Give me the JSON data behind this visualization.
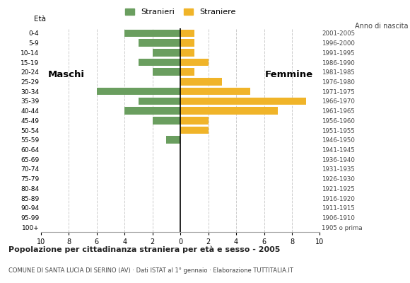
{
  "age_groups": [
    "100+",
    "95-99",
    "90-94",
    "85-89",
    "80-84",
    "75-79",
    "70-74",
    "65-69",
    "60-64",
    "55-59",
    "50-54",
    "45-49",
    "40-44",
    "35-39",
    "30-34",
    "25-29",
    "20-24",
    "15-19",
    "10-14",
    "5-9",
    "0-4"
  ],
  "birth_years": [
    "1905 o prima",
    "1906-1910",
    "1911-1915",
    "1916-1920",
    "1921-1925",
    "1926-1930",
    "1931-1935",
    "1936-1940",
    "1941-1945",
    "1946-1950",
    "1951-1955",
    "1956-1960",
    "1961-1965",
    "1966-1970",
    "1971-1975",
    "1976-1980",
    "1981-1985",
    "1986-1990",
    "1991-1995",
    "1996-2000",
    "2001-2005"
  ],
  "maschi": [
    0,
    0,
    0,
    0,
    0,
    0,
    0,
    0,
    0,
    1,
    0,
    2,
    4,
    3,
    6,
    0,
    2,
    3,
    2,
    3,
    4
  ],
  "femmine": [
    0,
    0,
    0,
    0,
    0,
    0,
    0,
    0,
    0,
    0,
    2,
    2,
    7,
    9,
    5,
    3,
    1,
    2,
    1,
    1,
    1
  ],
  "male_color": "#6a9e5f",
  "female_color": "#f0b429",
  "title": "Popolazione per cittadinanza straniera per età e sesso - 2005",
  "subtitle": "COMUNE DI SANTA LUCIA DI SERINO (AV) · Dati ISTAT al 1° gennaio · Elaborazione TUTTITALIA.IT",
  "legend_male": "Stranieri",
  "legend_female": "Straniere",
  "ylabel_left": "Età",
  "ylabel_right": "Anno di nascita",
  "label_maschi": "Maschi",
  "label_femmine": "Femmine",
  "xlim": 10,
  "background_color": "#ffffff",
  "grid_color": "#cccccc",
  "x_ticks": [
    -10,
    -8,
    -6,
    -4,
    -2,
    0,
    2,
    4,
    6,
    8,
    10
  ]
}
